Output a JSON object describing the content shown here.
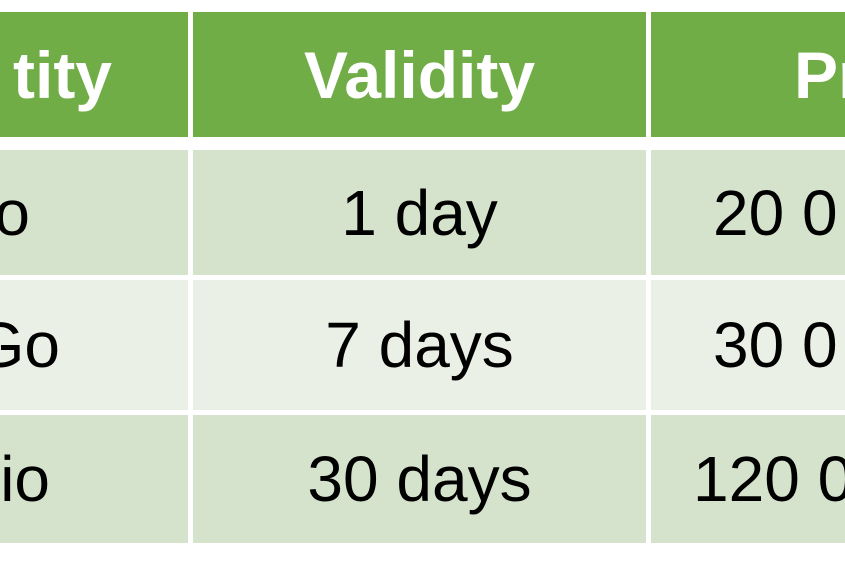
{
  "colors": {
    "header": "#70AD47",
    "row_odd": "#D5E3CC",
    "row_even": "#EAF0E6"
  },
  "table": {
    "headers": [
      "tity",
      "Validity",
      "Pr"
    ],
    "rows": [
      [
        "o",
        "1 day",
        "20 0"
      ],
      [
        "Go",
        "7 days",
        "30 0"
      ],
      [
        "io",
        "30 days",
        "120 0"
      ]
    ]
  }
}
